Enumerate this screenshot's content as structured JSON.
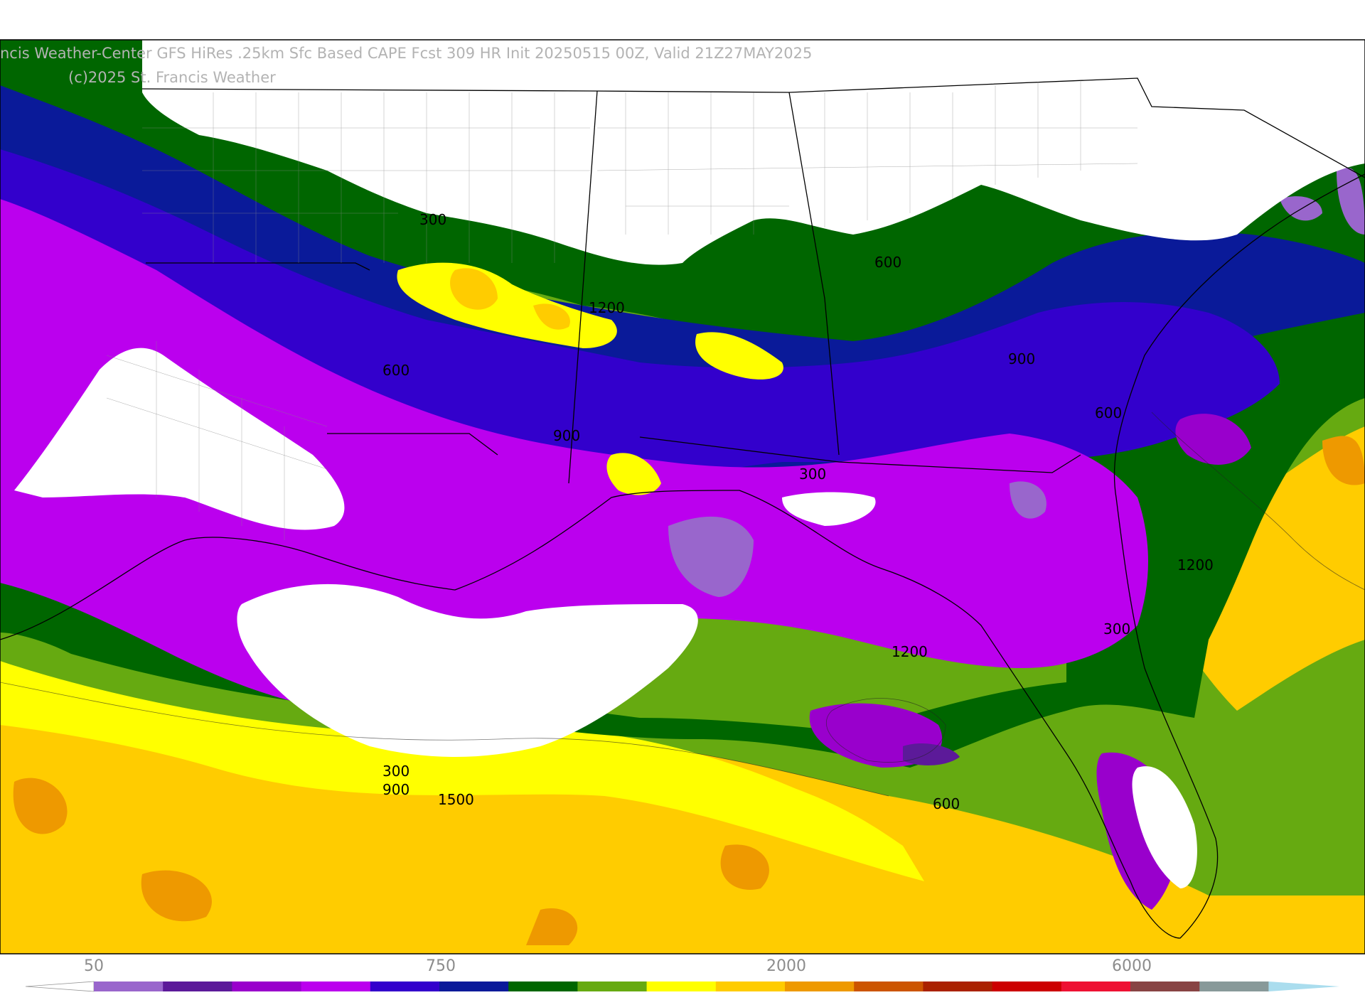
{
  "title": {
    "line1": "ncis Weather-Center GFS HiRes .25km Sfc Based CAPE  Fcst 309 HR Init 20250515 00Z, Valid 21Z27MAY2025",
    "line2": "(c)2025 St. Francis Weather"
  },
  "contour_labels": [
    "300",
    "600",
    "1200",
    "600",
    "900",
    "300",
    "600",
    "900",
    "900",
    "1200",
    "300",
    "1200",
    "300",
    "900",
    "1500",
    "600"
  ],
  "legend": {
    "tick_labels": [
      "50",
      "750",
      "2000",
      "6000"
    ],
    "colors": [
      "#9966cc",
      "#5c1a99",
      "#9900cc",
      "#bb00ee",
      "#3300cc",
      "#0a1a99",
      "#006600",
      "#66aa11",
      "#ffff00",
      "#ffcc00",
      "#ee9900",
      "#cc5500",
      "#aa2200",
      "#cc0000",
      "#ee1133",
      "#884444",
      "#889999",
      "#aaddee"
    ]
  },
  "colors": {
    "cape_lt_purple": "#9966cc",
    "cape_dk_purple": "#5c1a99",
    "cape_magenta": "#9900cc",
    "cape_violet": "#bb00ee",
    "cape_blue": "#3300cc",
    "cape_navy": "#0a1a99",
    "cape_dk_green": "#006600",
    "cape_lt_green": "#66aa11",
    "cape_yellow": "#ffff00",
    "cape_gold": "#ffcc00",
    "cape_orange": "#ee9900"
  }
}
